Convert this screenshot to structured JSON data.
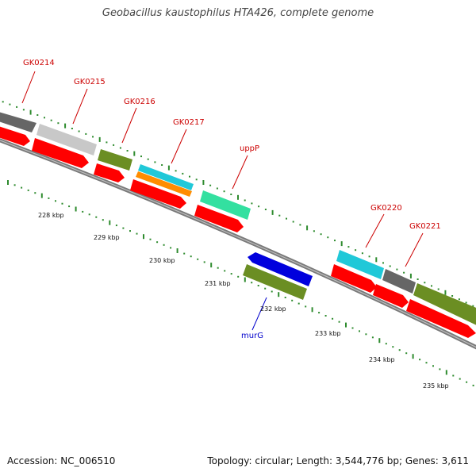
{
  "title": "Geobacillus kaustophilus HTA426, complete genome",
  "footer": {
    "accession": "Accession: NC_006510",
    "summary": "Topology: circular; Length: 3,544,776 bp; Genes: 3,611"
  },
  "colors": {
    "backbone": "#7a7a7a",
    "tick": "#2e8b2e",
    "forward_label": "#cc0000",
    "reverse_label": "#0000cc",
    "cds": "#ff0000"
  },
  "scale": {
    "unit": "kbp",
    "labels": [
      "228 kbp",
      "229 kbp",
      "230 kbp",
      "231 kbp",
      "232 kbp",
      "233 kbp",
      "234 kbp",
      "235 kbp"
    ]
  },
  "genes": [
    {
      "name": "GK0214",
      "strand": "forward",
      "label_color": "#cc0000"
    },
    {
      "name": "GK0215",
      "strand": "forward",
      "label_color": "#cc0000"
    },
    {
      "name": "GK0216",
      "strand": "forward",
      "label_color": "#cc0000"
    },
    {
      "name": "GK0217",
      "strand": "forward",
      "label_color": "#cc0000"
    },
    {
      "name": "uppP",
      "strand": "forward",
      "label_color": "#cc0000"
    },
    {
      "name": "murG",
      "strand": "reverse",
      "label_color": "#0000cc"
    },
    {
      "name": "GK0220",
      "strand": "forward",
      "label_color": "#cc0000"
    },
    {
      "name": "GK0221",
      "strand": "forward",
      "label_color": "#cc0000"
    }
  ]
}
